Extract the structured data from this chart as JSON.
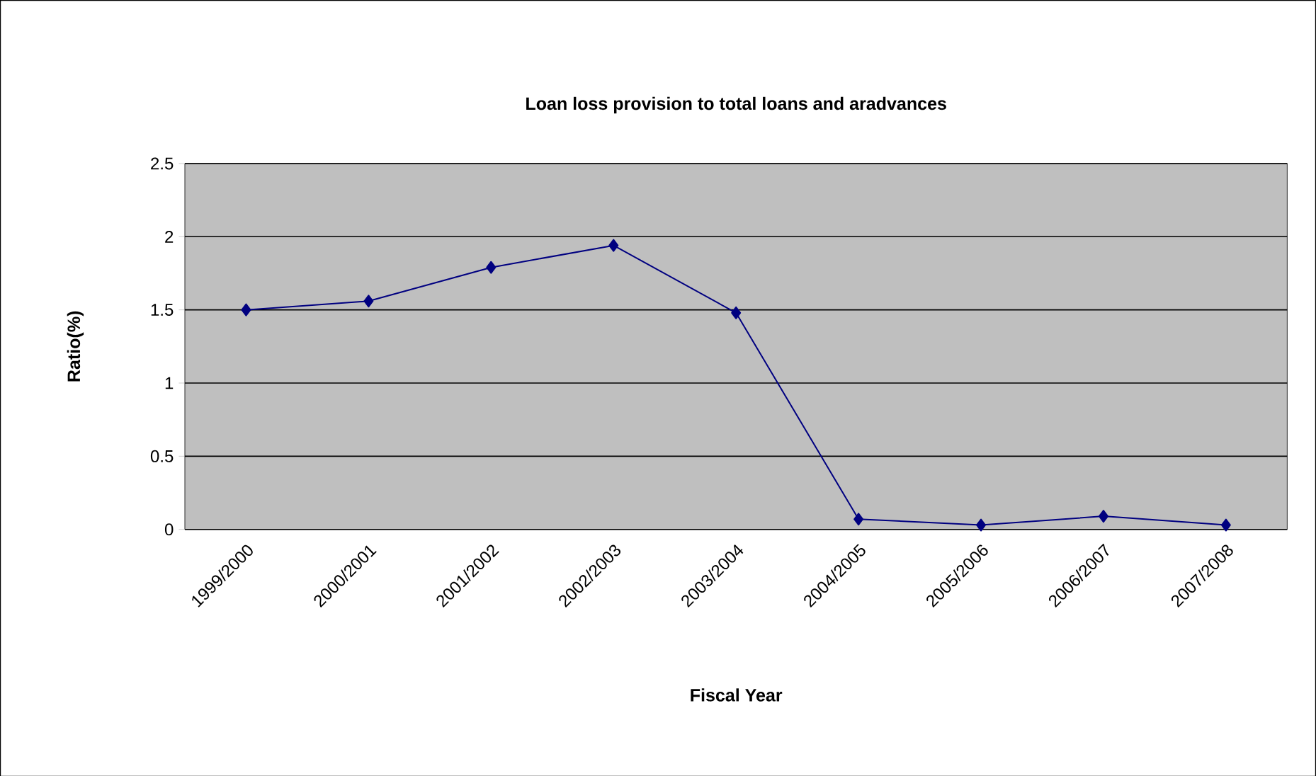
{
  "chart_data": {
    "type": "line",
    "title": "Loan loss provision to total loans and aradvances",
    "xlabel": "Fiscal Year",
    "ylabel": "Ratio(%)",
    "categories": [
      "1999/2000",
      "2000/2001",
      "2001/2002",
      "2002/2003",
      "2003/2004",
      "2004/2005",
      "2005/2006",
      "2006/2007",
      "2007/2008"
    ],
    "series": [
      {
        "color": "#000080",
        "values": [
          1.5,
          1.56,
          1.79,
          1.94,
          1.48,
          0.07,
          0.03,
          0.09,
          0.03
        ]
      }
    ],
    "ylim": [
      0,
      2.5
    ],
    "yticks": [
      0,
      0.5,
      1,
      1.5,
      2,
      2.5
    ],
    "grid": "y",
    "marker": "diamond",
    "line_style": "solid"
  }
}
